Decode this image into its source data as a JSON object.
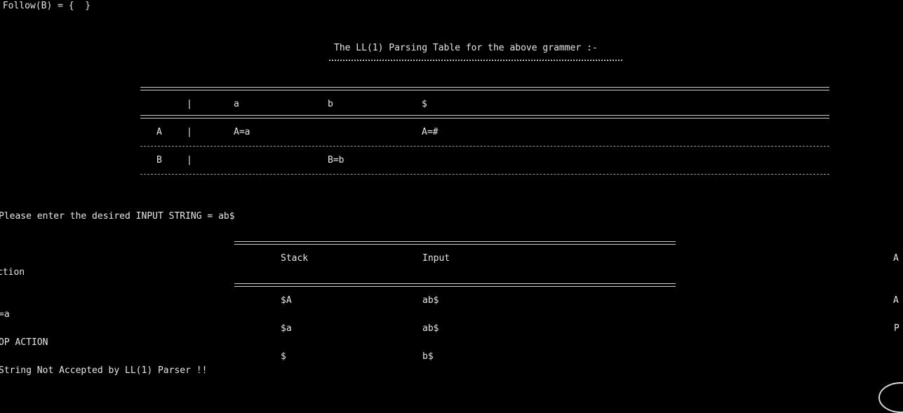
{
  "console": {
    "follow_line": " Follow(B) = {  }",
    "table_title": "The LL(1) Parsing Table for the above grammer :-",
    "parse_table": {
      "columns": [
        "a",
        "b",
        "$"
      ],
      "separator": "|",
      "rows": [
        {
          "nonterminal": "A",
          "cells": [
            "A=a",
            "",
            "A=#"
          ]
        },
        {
          "nonterminal": "B",
          "cells": [
            "",
            "B=b",
            ""
          ]
        }
      ]
    },
    "input_prompt": "Please enter the desired INPUT STRING = ab$",
    "trace": {
      "headers": {
        "stack": "Stack",
        "input": "Input",
        "action_right": "A",
        "action_wrapped": "ction"
      },
      "steps": [
        {
          "stack": "$A",
          "input": "ab$",
          "action_right": "A",
          "action_wrapped": "=a"
        },
        {
          "stack": "$a",
          "input": "ab$",
          "action_right": "P",
          "action_wrapped": "OP ACTION"
        },
        {
          "stack": "$",
          "input": "b$"
        }
      ]
    },
    "result_message": "String Not Accepted by LL(1) Parser !!"
  }
}
